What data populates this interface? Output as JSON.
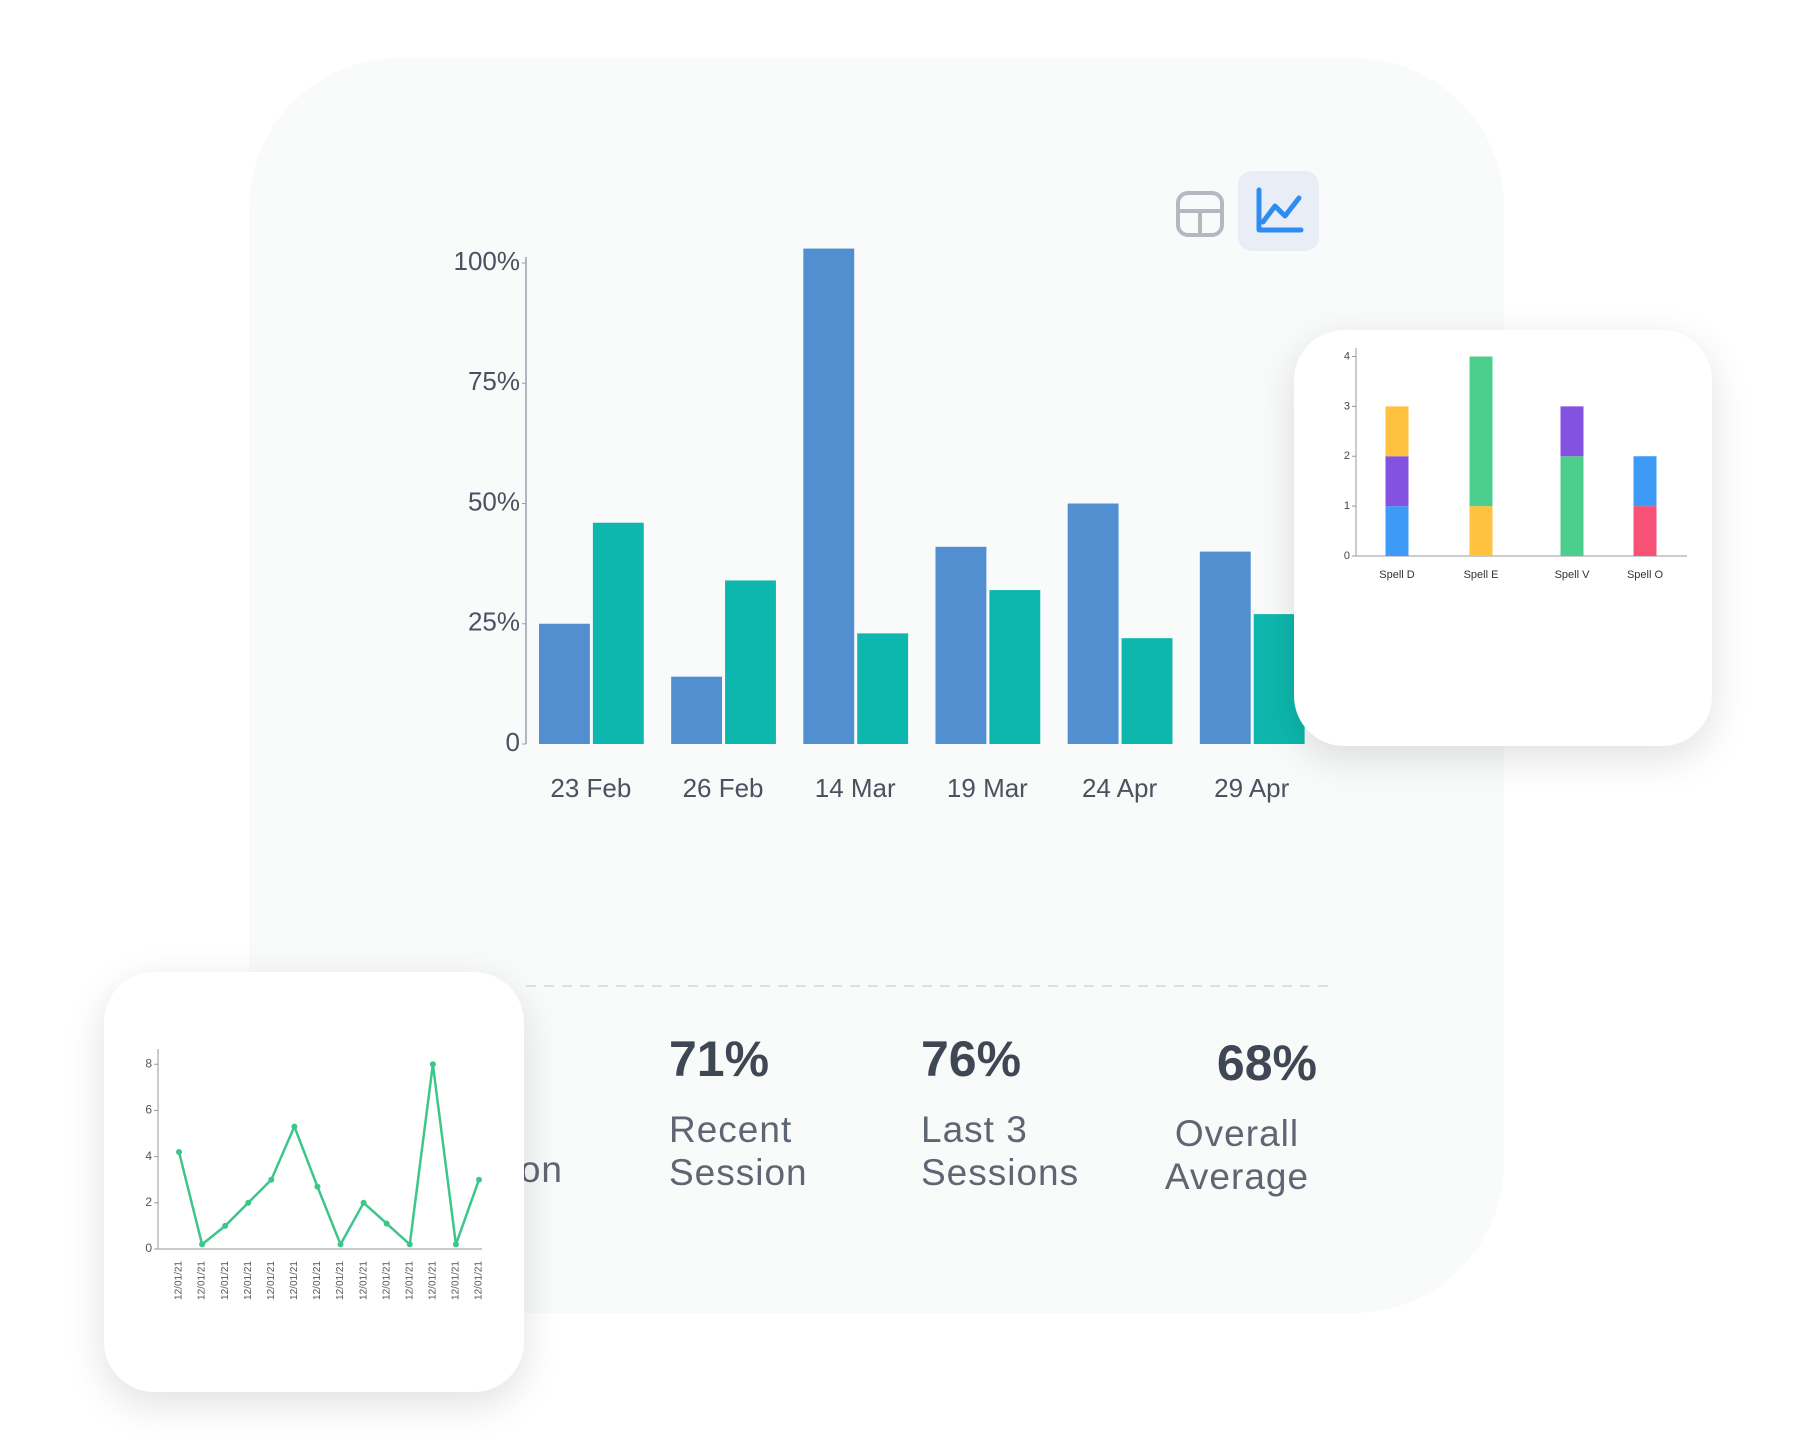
{
  "chart_data": [
    {
      "type": "bar",
      "categories": [
        "23 Feb",
        "26 Feb",
        "14 Mar",
        "19 Mar",
        "24 Apr",
        "29 Apr"
      ],
      "series": [
        {
          "color": "#518fd1",
          "values": [
            25,
            14,
            103,
            41,
            50,
            40
          ]
        },
        {
          "color": "#0db7ad",
          "values": [
            46,
            34,
            23,
            32,
            22,
            27
          ]
        }
      ],
      "ylim": [
        0,
        100
      ],
      "yticks": [
        0,
        {
          "value": 25,
          "label": "25%"
        },
        {
          "value": 50,
          "label": "50%"
        },
        {
          "value": 75,
          "label": "75%"
        },
        {
          "value": 100,
          "label": "100%"
        }
      ]
    },
    {
      "type": "stacked_bar",
      "categories": [
        "Spell D",
        "Spell E",
        "Spell V",
        "Spell O"
      ],
      "stacks": [
        [
          {
            "color": "#3d9bf7",
            "value": 1
          },
          {
            "color": "#8452e0",
            "value": 1
          },
          {
            "color": "#fec240",
            "value": 1
          }
        ],
        [
          {
            "color": "#fec240",
            "value": 1
          },
          {
            "color": "#4ccf8c",
            "value": 3
          }
        ],
        [
          {
            "color": "#4ccf8c",
            "value": 2
          },
          {
            "color": "#8452e0",
            "value": 1
          }
        ],
        [
          {
            "color": "#f55276",
            "value": 1
          },
          {
            "color": "#3d9bf7",
            "value": 1
          }
        ]
      ],
      "ylim": [
        0,
        4.05
      ],
      "yticks": [
        0,
        1,
        2,
        3,
        4
      ]
    },
    {
      "type": "line",
      "categories": [
        "12/01/21",
        "12/01/21",
        "12/01/21",
        "12/01/21",
        "12/01/21",
        "12/01/21",
        "12/01/21",
        "12/01/21",
        "12/01/21",
        "12/01/21",
        "12/01/21",
        "12/01/21",
        "12/01/21",
        "12/01/21"
      ],
      "series": [
        {
          "color": "#3cc68a",
          "values": [
            4.2,
            0.2,
            1,
            2,
            3,
            5.3,
            2.7,
            0.2,
            2,
            1.1,
            0.2,
            8,
            0.2,
            3
          ]
        }
      ],
      "ylim": [
        0,
        8.4
      ],
      "yticks": [
        0,
        2,
        4,
        6,
        8
      ]
    }
  ],
  "stats": [
    {
      "label": "on"
    },
    {
      "value": "71%",
      "label": "Recent Session"
    },
    {
      "value": "76%",
      "label": "Last 3 Sessions"
    },
    {
      "value": "68%",
      "label": "Overall Average"
    }
  ]
}
